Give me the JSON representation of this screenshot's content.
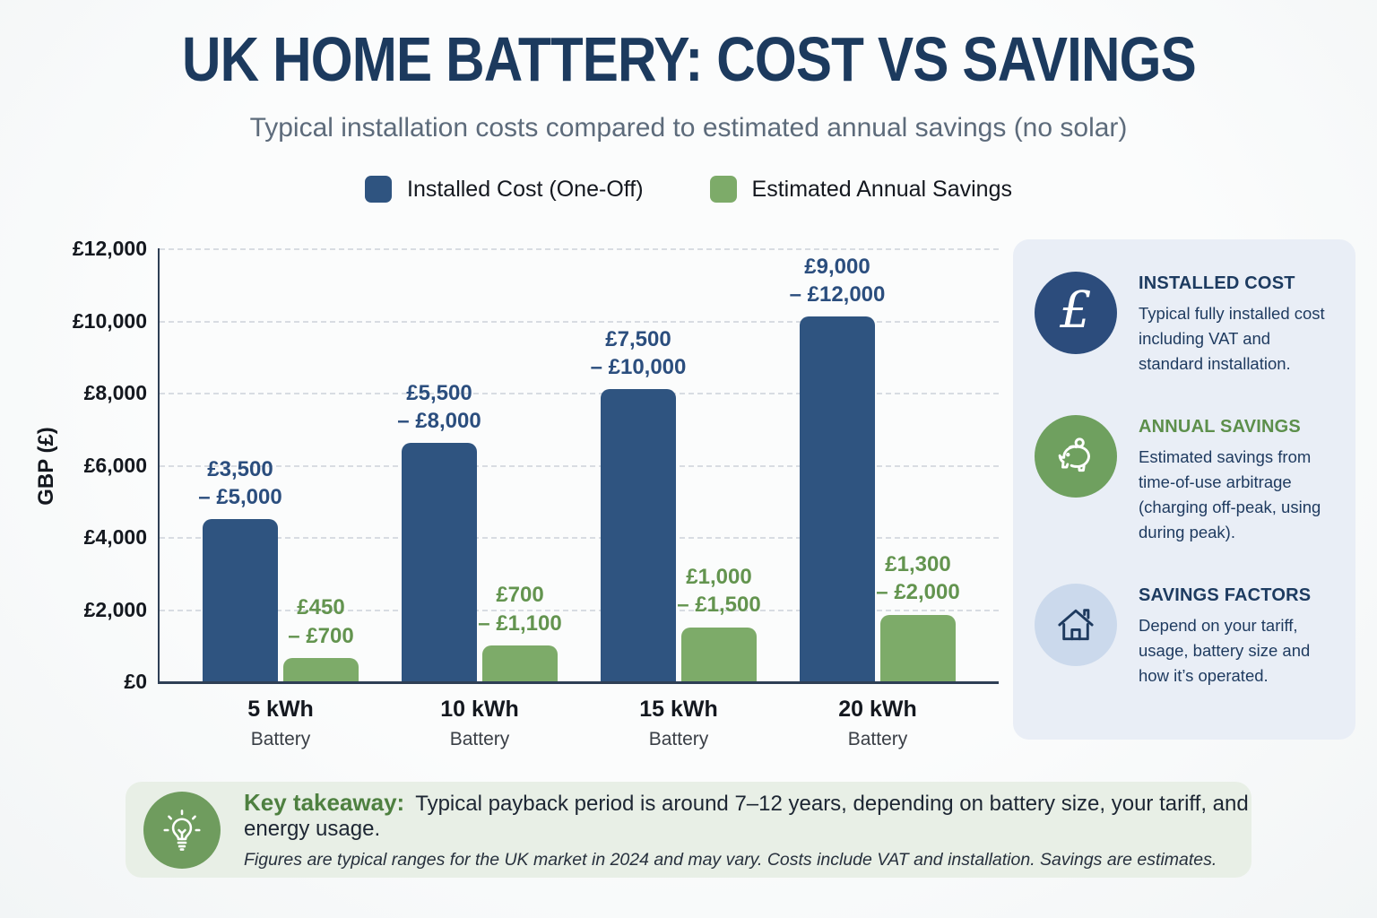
{
  "title": "UK HOME BATTERY: COST VS SAVINGS",
  "subtitle": "Typical installation costs compared to estimated annual savings (no solar)",
  "legend": [
    {
      "label": "Installed Cost (One-Off)",
      "color": "#2F5480"
    },
    {
      "label": "Estimated Annual Savings",
      "color": "#7DAB69"
    }
  ],
  "chart_data": {
    "type": "bar",
    "title": "UK Home Battery: Cost vs Savings",
    "xlabel": "",
    "ylabel": "GBP (£)",
    "ylim": [
      0,
      12000
    ],
    "yticks": [
      "£0",
      "£2,000",
      "£4,000",
      "£6,000",
      "£8,000",
      "£10,000",
      "£12,000"
    ],
    "grid": "horizontal-dashed",
    "legend_position": "top",
    "categories": [
      {
        "label": "5 kWh",
        "sublabel": "Battery"
      },
      {
        "label": "10 kWh",
        "sublabel": "Battery"
      },
      {
        "label": "15 kWh",
        "sublabel": "Battery"
      },
      {
        "label": "20 kWh",
        "sublabel": "Battery"
      }
    ],
    "series": [
      {
        "name": "Installed Cost (One-Off)",
        "color": "#2F5480",
        "label_color": "#2B4E7E",
        "values": [
          4500,
          6600,
          8100,
          10100
        ],
        "range_labels": [
          [
            "£3,500",
            "– £5,000"
          ],
          [
            "£5,500",
            "– £8,000"
          ],
          [
            "£7,500",
            "– £10,000"
          ],
          [
            "£9,000",
            "– £12,000"
          ]
        ]
      },
      {
        "name": "Estimated Annual Savings",
        "color": "#7DAB69",
        "label_color": "#63944F",
        "values": [
          650,
          1000,
          1500,
          1850
        ],
        "range_labels": [
          [
            "£450",
            "– £700"
          ],
          [
            "£700",
            "– £1,100"
          ],
          [
            "£1,000",
            "– £1,500"
          ],
          [
            "£1,300",
            "– £2,000"
          ]
        ]
      }
    ]
  },
  "side_panel": {
    "items": [
      {
        "icon": "pound-icon",
        "icon_bg": "#2C4C7C",
        "heading": "INSTALLED COST",
        "heading_color": "#1D3B60",
        "body": "Typical fully installed cost including VAT and standard installation."
      },
      {
        "icon": "piggy-bank-icon",
        "icon_bg": "#6FA05F",
        "heading": "ANNUAL SAVINGS",
        "heading_color": "#5C8F4B",
        "body": "Estimated savings from time-of-use arbitrage (charging off-peak, using during peak)."
      },
      {
        "icon": "house-icon",
        "icon_bg": "#CBD9EC",
        "heading": "SAVINGS FACTORS",
        "heading_color": "#1D3B60",
        "body": "Depend on your tariff, usage, battery size and how it’s operated."
      }
    ]
  },
  "takeaway": {
    "label": "Key takeaway:",
    "text": "Typical payback period is around 7–12 years, depending on battery size, your tariff, and energy usage.",
    "footnote": "Figures are typical ranges for the UK market in 2024 and may vary. Costs include VAT and installation. Savings are estimates."
  }
}
